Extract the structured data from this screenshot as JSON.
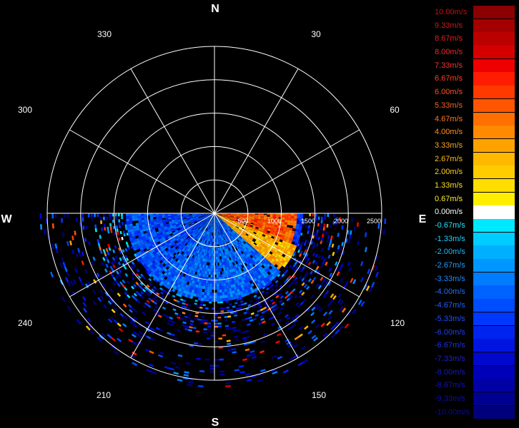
{
  "compass": {
    "north": "N",
    "east": "E",
    "south": "S",
    "west": "W"
  },
  "angle_labels": [
    "30",
    "60",
    "120",
    "150",
    "210",
    "240",
    "300",
    "330"
  ],
  "range_labels": [
    "500",
    "1000",
    "1500",
    "2000",
    "2500"
  ],
  "legend": [
    {
      "label": "10.00m/s",
      "color": "#8b0000",
      "text_color": "#c01010"
    },
    {
      "label": "9.33m/s",
      "color": "#a30000",
      "text_color": "#d01818"
    },
    {
      "label": "8.67m/s",
      "color": "#bb0000",
      "text_color": "#e02020"
    },
    {
      "label": "8.00m/s",
      "color": "#d40000",
      "text_color": "#f02828"
    },
    {
      "label": "7.33m/s",
      "color": "#ee0000",
      "text_color": "#ff3030"
    },
    {
      "label": "6.67m/s",
      "color": "#ff1c00",
      "text_color": "#ff4020"
    },
    {
      "label": "6.00m/s",
      "color": "#ff3a00",
      "text_color": "#ff5020"
    },
    {
      "label": "5.33m/s",
      "color": "#ff5500",
      "text_color": "#ff6020"
    },
    {
      "label": "4.67m/s",
      "color": "#ff7000",
      "text_color": "#ff7a20"
    },
    {
      "label": "4.00m/s",
      "color": "#ff8a00",
      "text_color": "#ff9020"
    },
    {
      "label": "3.33m/s",
      "color": "#ffa200",
      "text_color": "#ffa820"
    },
    {
      "label": "2.67m/s",
      "color": "#ffb800",
      "text_color": "#ffbc20"
    },
    {
      "label": "2.00m/s",
      "color": "#ffcc00",
      "text_color": "#ffd020"
    },
    {
      "label": "1.33m/s",
      "color": "#ffdd00",
      "text_color": "#ffe020"
    },
    {
      "label": "0.67m/s",
      "color": "#ffee00",
      "text_color": "#ffee30"
    },
    {
      "label": "0.00m/s",
      "color": "#ffffff",
      "text_color": "#ffffff"
    },
    {
      "label": "-0.67m/s",
      "color": "#00e8ff",
      "text_color": "#20e8ff"
    },
    {
      "label": "-1.33m/s",
      "color": "#00ccff",
      "text_color": "#20d0ff"
    },
    {
      "label": "-2.00m/s",
      "color": "#00b0ff",
      "text_color": "#20b8ff"
    },
    {
      "label": "-2.67m/s",
      "color": "#0096ff",
      "text_color": "#20a0ff"
    },
    {
      "label": "-3.33m/s",
      "color": "#007cff",
      "text_color": "#2088ff"
    },
    {
      "label": "-4.00m/s",
      "color": "#0062ff",
      "text_color": "#2070ff"
    },
    {
      "label": "-4.67m/s",
      "color": "#004cff",
      "text_color": "#2060ff"
    },
    {
      "label": "-5.33m/s",
      "color": "#0038ff",
      "text_color": "#2050ff"
    },
    {
      "label": "-6.00m/s",
      "color": "#0024f0",
      "text_color": "#2040f0"
    },
    {
      "label": "-6.67m/s",
      "color": "#0014e0",
      "text_color": "#2030e0"
    },
    {
      "label": "-7.33m/s",
      "color": "#0008cc",
      "text_color": "#2020d0"
    },
    {
      "label": "-8.00m/s",
      "color": "#0000b8",
      "text_color": "#1818c0"
    },
    {
      "label": "-8.67m/s",
      "color": "#0000a4",
      "text_color": "#1414b0"
    },
    {
      "label": "-9.33m/s",
      "color": "#000090",
      "text_color": "#1010a0"
    },
    {
      "label": "-10.00m/s",
      "color": "#00007c",
      "text_color": "#0c0c90"
    }
  ],
  "chart_data": {
    "type": "heatmap",
    "projection": "polar",
    "title": "",
    "angle_ticks_deg": [
      0,
      30,
      60,
      90,
      120,
      150,
      180,
      210,
      240,
      270,
      300,
      330
    ],
    "range_ticks": [
      500,
      1000,
      1500,
      2000,
      2500
    ],
    "range_max": 2600,
    "data_sector_deg": [
      90,
      270
    ],
    "velocity_scale": {
      "min": -10.0,
      "max": 10.0,
      "step": 0.67,
      "unit": "m/s"
    },
    "sector_summary": [
      {
        "azimuth_deg": [
          90,
          110
        ],
        "range": [
          0,
          1200
        ],
        "typical_velocity": 5.3
      },
      {
        "azimuth_deg": [
          110,
          130
        ],
        "range": [
          0,
          1300
        ],
        "typical_velocity": 2.7
      },
      {
        "azimuth_deg": [
          130,
          220
        ],
        "range": [
          0,
          1400
        ],
        "typical_velocity": -4.0
      },
      {
        "azimuth_deg": [
          220,
          270
        ],
        "range": [
          0,
          1800
        ],
        "typical_velocity": -4.7
      },
      {
        "azimuth_deg": [
          90,
          270
        ],
        "range": [
          1400,
          2600
        ],
        "typical_velocity": -7.3
      }
    ]
  }
}
